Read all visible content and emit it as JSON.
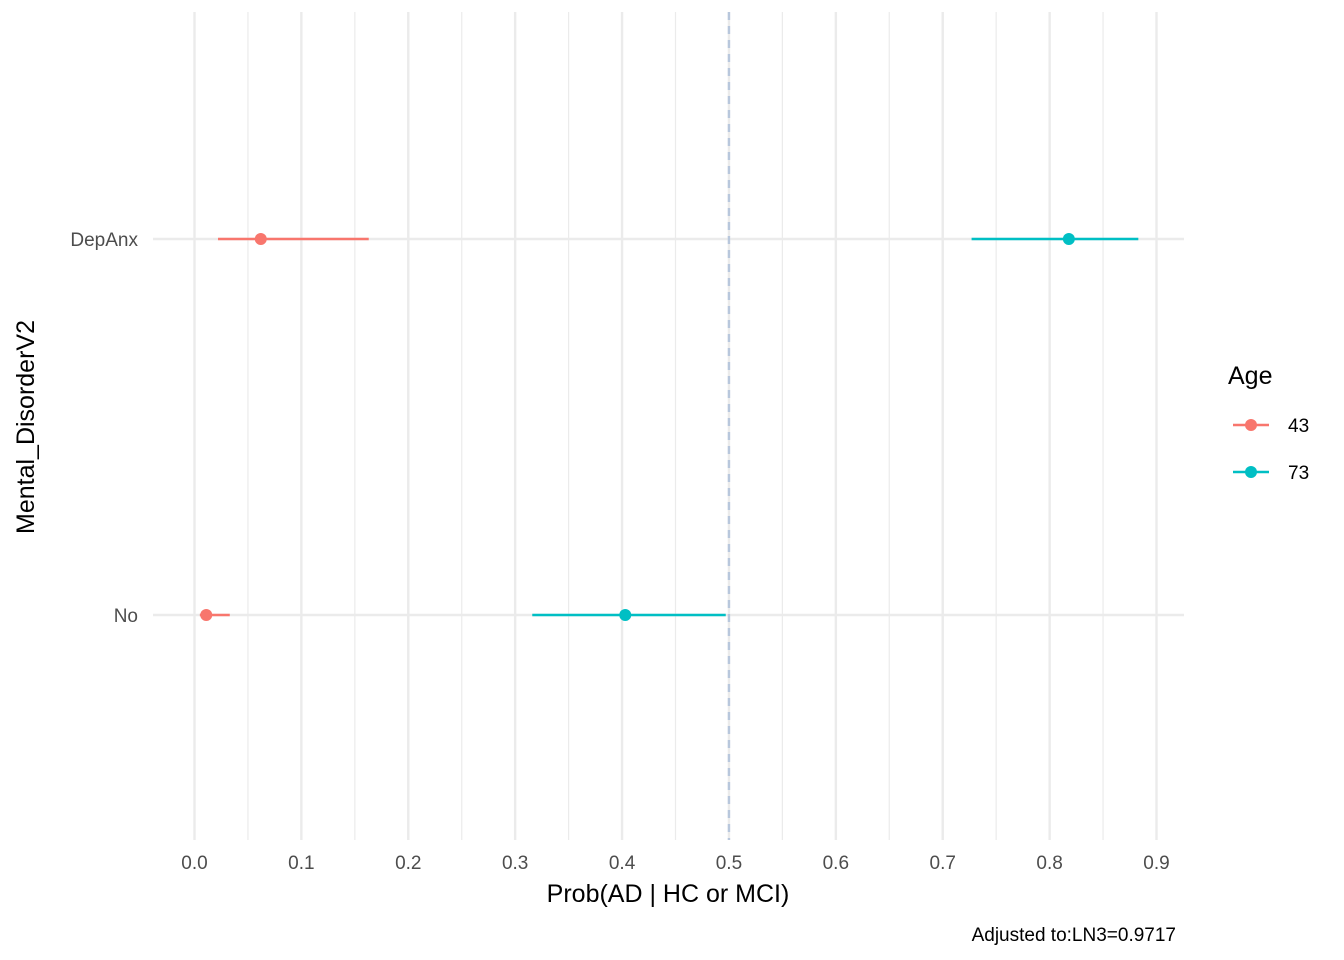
{
  "chart_data": {
    "type": "pointrange",
    "xlabel": "Prob(AD | HC or MCI)",
    "ylabel": "Mental_DisorderV2",
    "caption": "Adjusted to:LN3=0.9717",
    "xlim": [
      0.0,
      0.9
    ],
    "x_ticks": [
      "0.0",
      "0.1",
      "0.2",
      "0.3",
      "0.4",
      "0.5",
      "0.6",
      "0.7",
      "0.8",
      "0.9"
    ],
    "categories": [
      "DepAnx",
      "No"
    ],
    "reference_line": {
      "x": 0.5,
      "style": "dashed",
      "color": "#b8c7dc"
    },
    "grid": true,
    "legend": {
      "title": "Age",
      "position": "right"
    },
    "series": [
      {
        "name": "43",
        "color": "#f8766d",
        "points": [
          {
            "category": "DepAnx",
            "estimate": 0.062,
            "lower": 0.022,
            "upper": 0.163
          },
          {
            "category": "No",
            "estimate": 0.011,
            "lower": 0.005,
            "upper": 0.033
          }
        ]
      },
      {
        "name": "73",
        "color": "#00bfc4",
        "points": [
          {
            "category": "DepAnx",
            "estimate": 0.818,
            "lower": 0.727,
            "upper": 0.883
          },
          {
            "category": "No",
            "estimate": 0.403,
            "lower": 0.316,
            "upper": 0.497
          }
        ]
      }
    ]
  }
}
